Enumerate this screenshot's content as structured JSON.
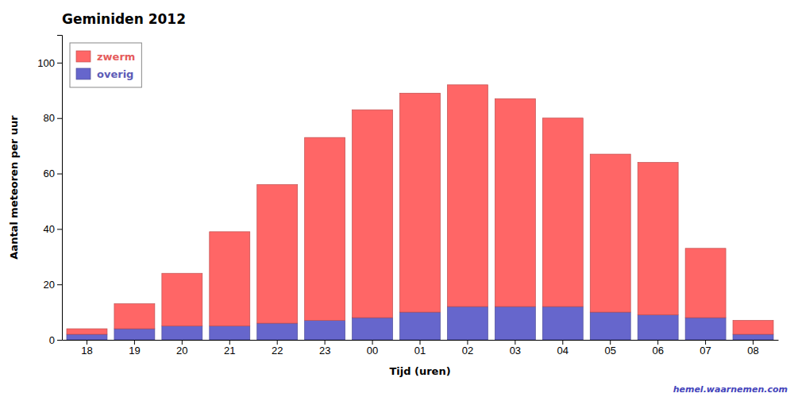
{
  "chart_data": {
    "type": "bar",
    "stacked": true,
    "title": "Geminiden 2012",
    "xlabel": "Tijd (uren)",
    "ylabel": "Aantal meteoren per uur",
    "categories": [
      "18",
      "19",
      "20",
      "21",
      "22",
      "23",
      "00",
      "01",
      "02",
      "03",
      "04",
      "05",
      "06",
      "07",
      "08"
    ],
    "series": [
      {
        "name": "overig",
        "color": "#6666CC",
        "values": [
          2,
          4,
          5,
          5,
          6,
          7,
          8,
          10,
          12,
          12,
          12,
          10,
          9,
          8,
          2
        ]
      },
      {
        "name": "zwerm",
        "color": "#FF6666",
        "values": [
          2,
          9,
          19,
          34,
          50,
          66,
          75,
          79,
          80,
          75,
          68,
          57,
          55,
          25,
          5
        ]
      }
    ],
    "ylim": [
      0,
      110
    ],
    "yticks": [
      0,
      20,
      40,
      60,
      80,
      100
    ],
    "grid": false,
    "legend": "upper left",
    "annotations": [
      {
        "text": "hemel.waarnemen.com",
        "color": "#4444BB"
      }
    ]
  }
}
